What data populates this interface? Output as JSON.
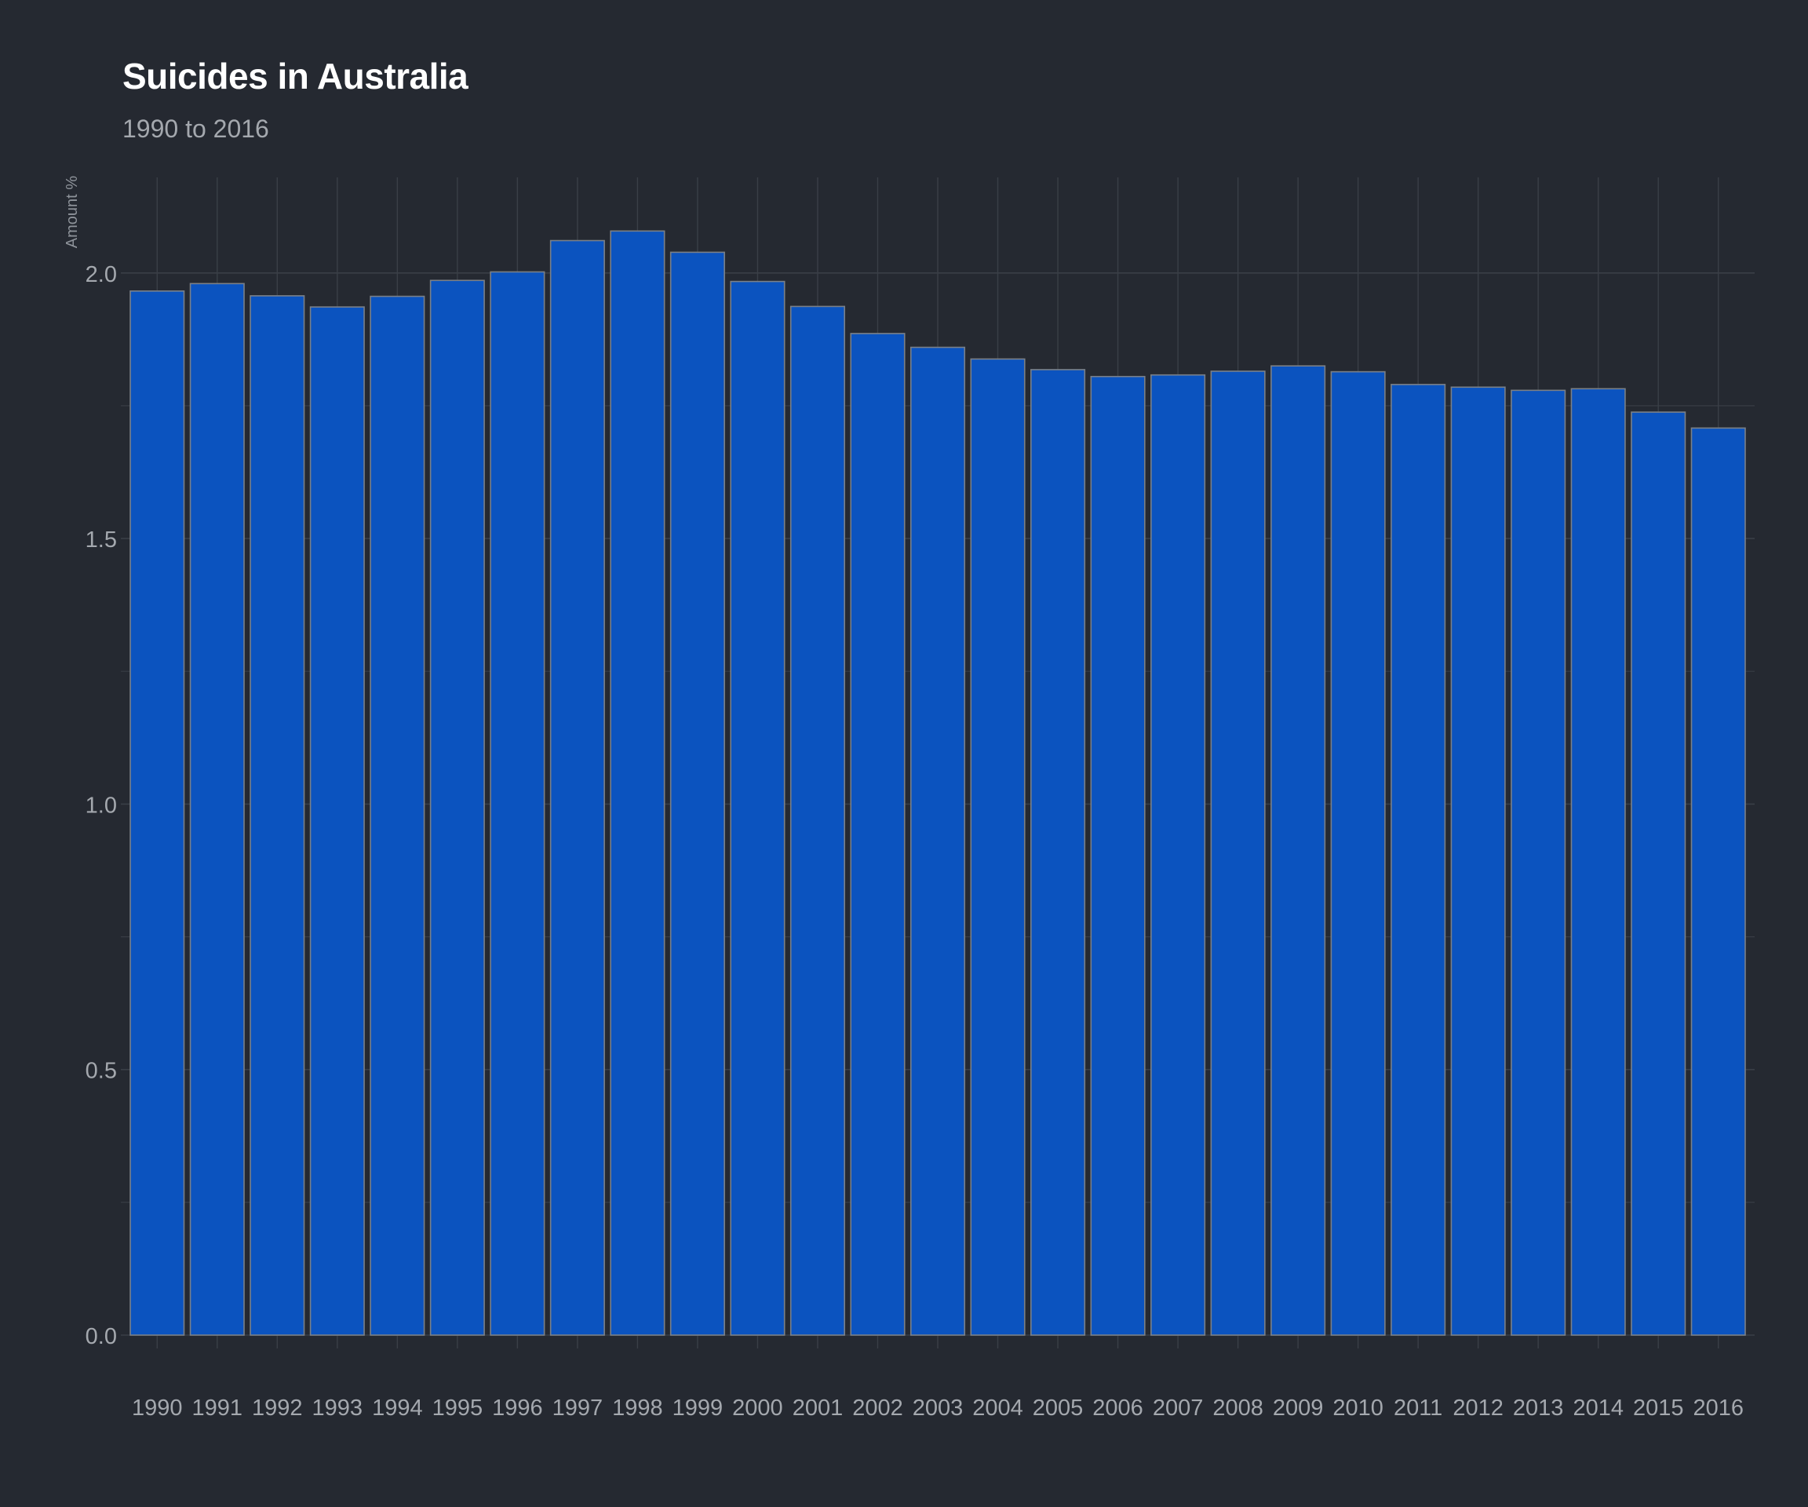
{
  "chart_data": {
    "type": "bar",
    "title": "Suicides in Australia",
    "subtitle": "1990 to 2016",
    "xlabel": "",
    "ylabel": "Amount %",
    "ylim": [
      0,
      2.18
    ],
    "yticks": [
      0.0,
      0.5,
      1.0,
      1.5,
      2.0
    ],
    "ytick_labels": [
      "0.0",
      "0.5",
      "1.0",
      "1.5",
      "2.0"
    ],
    "grid": true,
    "legend": "none",
    "categories": [
      "1990",
      "1991",
      "1992",
      "1993",
      "1994",
      "1995",
      "1996",
      "1997",
      "1998",
      "1999",
      "2000",
      "2001",
      "2002",
      "2003",
      "2004",
      "2005",
      "2006",
      "2007",
      "2008",
      "2009",
      "2010",
      "2011",
      "2012",
      "2013",
      "2014",
      "2015",
      "2016"
    ],
    "values": [
      1.966,
      1.98,
      1.957,
      1.936,
      1.956,
      1.986,
      2.002,
      2.061,
      2.079,
      2.039,
      1.984,
      1.937,
      1.886,
      1.86,
      1.838,
      1.818,
      1.805,
      1.808,
      1.815,
      1.825,
      1.814,
      1.79,
      1.785,
      1.779,
      1.782,
      1.738,
      1.708
    ],
    "colors": {
      "background": "#252931",
      "bar_fill": "#0b53bf",
      "bar_stroke": "#7a8088",
      "grid": "#3a3f47",
      "text": "#a4a8ae",
      "title": "#ffffff"
    }
  }
}
